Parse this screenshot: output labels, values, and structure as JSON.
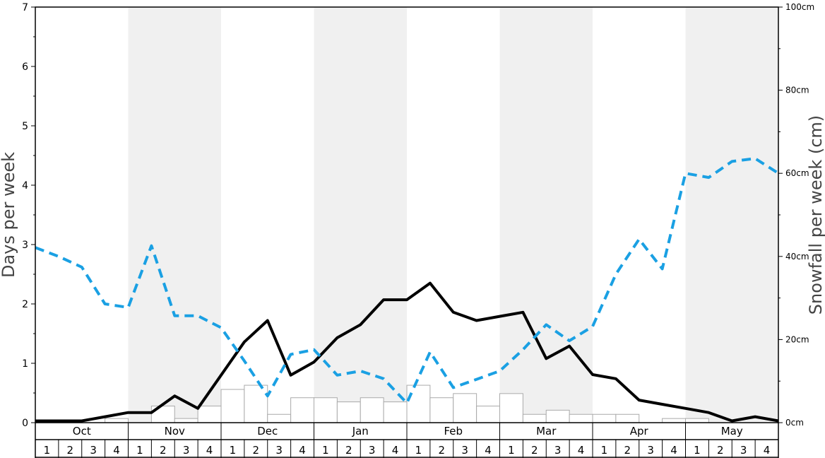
{
  "chart_data": {
    "type": "bar+line",
    "left_axis": {
      "label": "Days per week",
      "ylim": [
        0,
        7
      ],
      "ticks": [
        "0",
        "1",
        "2",
        "3",
        "4",
        "5",
        "6",
        "7"
      ]
    },
    "right_axis": {
      "label": "Snowfall per week (cm)",
      "ylim": [
        0,
        100
      ],
      "ticks": [
        "0cm",
        "20cm",
        "40cm",
        "60cm",
        "80cm",
        "100cm"
      ]
    },
    "months": [
      "Oct",
      "Nov",
      "Dec",
      "Jan",
      "Feb",
      "Mar",
      "Apr",
      "May"
    ],
    "week_labels": [
      "1",
      "2",
      "3",
      "4"
    ],
    "snowfall_bars_cm": [
      0,
      0,
      0,
      1,
      0,
      4,
      1,
      4,
      8,
      9,
      2,
      6,
      6,
      5,
      6,
      5,
      9,
      6,
      7,
      4,
      7,
      2,
      3,
      2,
      2,
      2,
      0,
      1,
      1,
      0,
      0,
      0
    ],
    "series": [
      {
        "style": "solid-black",
        "axis": "left",
        "values": [
          0.03,
          0.03,
          0.03,
          0.1,
          0.17,
          0.17,
          0.45,
          0.24,
          0.8,
          1.36,
          1.72,
          0.8,
          1.02,
          1.43,
          1.65,
          2.07,
          2.07,
          2.35,
          1.86,
          1.72,
          1.79,
          1.86,
          1.08,
          1.29,
          0.81,
          0.74,
          0.38,
          0.31,
          0.24,
          0.17,
          0.03,
          0.1,
          0.03
        ]
      },
      {
        "style": "dashed-blue",
        "axis": "left",
        "values": [
          2.95,
          2.8,
          2.62,
          2.0,
          1.94,
          2.98,
          1.8,
          1.8,
          1.6,
          1.04,
          0.45,
          1.15,
          1.23,
          0.8,
          0.87,
          0.74,
          0.33,
          1.19,
          0.59,
          0.73,
          0.87,
          1.23,
          1.65,
          1.38,
          1.62,
          2.5,
          3.09,
          2.59,
          4.2,
          4.13,
          4.4,
          4.45,
          4.2
        ]
      }
    ],
    "colors": {
      "line_solid": "#000000",
      "line_dashed": "#1aa0e3",
      "band_shade": "#f0f0f0",
      "bar_fill": "#ffffff",
      "bar_stroke": "#aaaaaa"
    }
  }
}
